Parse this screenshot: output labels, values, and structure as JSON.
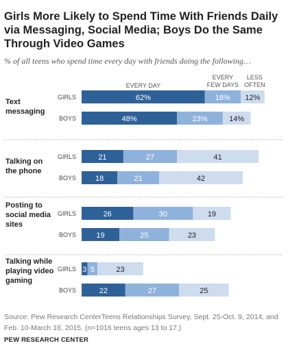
{
  "title": "Girls More Likely to Spend Time With Friends Daily via Messaging, Social Media; Boys Do the Same Through Video Games",
  "subtitle": "% of all teens who spend time every day with friends doing the following…",
  "source": "Source: Pew Research CenterTeens Relationships Survey, Sept. 25-Oct. 9, 2014, and Feb. 10-March 16, 2015. (n=1016 teens ages 13 to 17.)",
  "organization": "PEW RESEARCH CENTER",
  "colors": {
    "every_day": "#2f6199",
    "every_few_days": "#8fb2dc",
    "less_often": "#cddcef",
    "divider": "#999999"
  },
  "chart_data": {
    "type": "bar",
    "orientation": "horizontal",
    "stacked": true,
    "legend": [
      {
        "key": "every_day",
        "lines": [
          "EVERY DAY"
        ]
      },
      {
        "key": "every_few_days",
        "lines": [
          "EVERY",
          "FEW DAYS"
        ]
      },
      {
        "key": "less_often",
        "lines": [
          "LESS",
          "OFTEN"
        ]
      }
    ],
    "groups": [
      {
        "label_lines": [
          "Text",
          "messaging"
        ],
        "rows": [
          {
            "label": "GIRLS",
            "values": [
              62,
              18,
              12
            ],
            "labels": [
              "62%",
              "18%",
              "12%"
            ]
          },
          {
            "label": "BOYS",
            "values": [
              48,
              23,
              14
            ],
            "labels": [
              "48%",
              "23%",
              "14%"
            ]
          }
        ]
      },
      {
        "label_lines": [
          "Talking on",
          "the phone"
        ],
        "rows": [
          {
            "label": "GIRLS",
            "values": [
              21,
              27,
              41
            ],
            "labels": [
              "21",
              "27",
              "41"
            ]
          },
          {
            "label": "BOYS",
            "values": [
              18,
              21,
              42
            ],
            "labels": [
              "18",
              "21",
              "42"
            ]
          }
        ]
      },
      {
        "label_lines": [
          "Posting to",
          "social media",
          "sites"
        ],
        "rows": [
          {
            "label": "GIRLS",
            "values": [
              26,
              30,
              19
            ],
            "labels": [
              "26",
              "30",
              "19"
            ]
          },
          {
            "label": "BOYS",
            "values": [
              19,
              25,
              23
            ],
            "labels": [
              "19",
              "25",
              "23"
            ]
          }
        ]
      },
      {
        "label_lines": [
          "Talking while",
          "playing video",
          "gaming"
        ],
        "rows": [
          {
            "label": "GIRLS",
            "values": [
              3,
              5,
              23
            ],
            "labels": [
              "3",
              "5",
              "23"
            ]
          },
          {
            "label": "BOYS",
            "values": [
              22,
              27,
              25
            ],
            "labels": [
              "22",
              "27",
              "25"
            ]
          }
        ]
      }
    ]
  }
}
